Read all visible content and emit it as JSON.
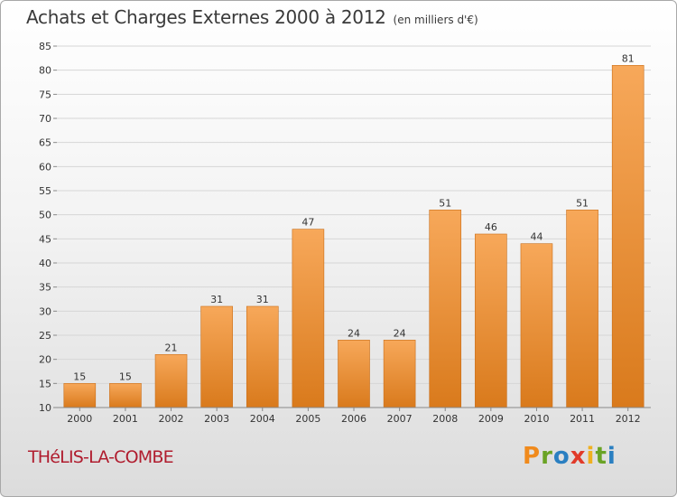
{
  "title": "Achats et Charges Externes 2000 à 2012",
  "subtitle": "(en milliers d'€)",
  "commune": "THéLIS-LA-COMBE",
  "brand": {
    "letters": [
      "P",
      "r",
      "o",
      "x",
      "i",
      "t",
      "i"
    ],
    "colors": [
      "#f08a1c",
      "#6aa325",
      "#2a7fc1",
      "#e13b2a",
      "#f0b020",
      "#6aa325",
      "#2a7fc1"
    ]
  },
  "colors": {
    "bar_top": "#f7a85a",
    "bar_bottom": "#d97a1c",
    "bar_edge": "#c96d17",
    "title": "#3a3a3a",
    "commune": "#b01c2e"
  },
  "chart_data": {
    "type": "bar",
    "categories": [
      "2000",
      "2001",
      "2002",
      "2003",
      "2004",
      "2005",
      "2006",
      "2007",
      "2008",
      "2009",
      "2010",
      "2011",
      "2012"
    ],
    "values": [
      15,
      15,
      21,
      31,
      31,
      47,
      24,
      24,
      51,
      46,
      44,
      51,
      81
    ],
    "ylim": [
      10,
      85
    ],
    "yticks": [
      10,
      15,
      20,
      25,
      30,
      35,
      40,
      45,
      50,
      55,
      60,
      65,
      70,
      75,
      80,
      85
    ],
    "grid": true
  }
}
